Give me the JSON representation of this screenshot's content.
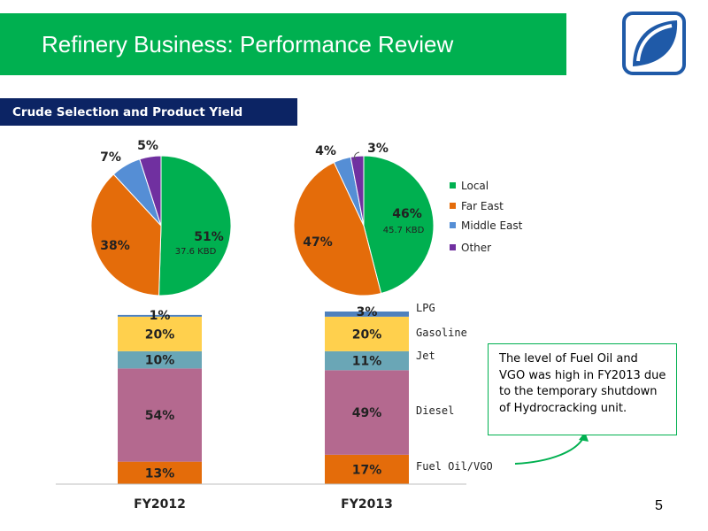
{
  "header": {
    "title": "Refinery Business: Performance Review",
    "section_label": "Crude Selection and Product Yield"
  },
  "colors": {
    "title_bar": "#00b050",
    "section_bar": "#0c2464",
    "logo": "#1f5aa8"
  },
  "callout": {
    "text": "The level of Fuel Oil and VGO was high in FY2013 due to the temporary shutdown of Hydrocracking unit."
  },
  "page_number": "5",
  "chart_data": [
    {
      "type": "pie",
      "legend": [
        {
          "label": "Local",
          "color": "#00b050"
        },
        {
          "label": "Far East",
          "color": "#e46c0a"
        },
        {
          "label": "Middle East",
          "color": "#558ed5"
        },
        {
          "label": "Other",
          "color": "#7030a0"
        }
      ],
      "legend_position": "right",
      "pies": [
        {
          "slices": [
            {
              "label": "Local",
              "value": 51,
              "value_label": "51%",
              "sub_label": "37.6 KBD",
              "color": "#00b050"
            },
            {
              "label": "Far East",
              "value": 38,
              "value_label": "38%",
              "color": "#e46c0a"
            },
            {
              "label": "Middle East",
              "value": 7,
              "value_label": "7%",
              "color": "#558ed5"
            },
            {
              "label": "Other",
              "value": 5,
              "value_label": "5%",
              "color": "#7030a0"
            }
          ]
        },
        {
          "slices": [
            {
              "label": "Local",
              "value": 46,
              "value_label": "46%",
              "sub_label": "45.7 KBD",
              "color": "#00b050"
            },
            {
              "label": "Far East",
              "value": 47,
              "value_label": "47%",
              "color": "#e46c0a"
            },
            {
              "label": "Middle East",
              "value": 4,
              "value_label": "4%",
              "color": "#558ed5"
            },
            {
              "label": "Other",
              "value": 3,
              "value_label": "3%",
              "color": "#7030a0"
            }
          ]
        }
      ]
    },
    {
      "type": "bar",
      "stacked": true,
      "categories": [
        "FY2012",
        "FY2013"
      ],
      "series": [
        {
          "name": "Fuel Oil/VGO",
          "values": [
            13,
            17
          ],
          "labels": [
            "13%",
            "17%"
          ],
          "color": "#e46c0a"
        },
        {
          "name": "Diesel",
          "values": [
            54,
            49
          ],
          "labels": [
            "54%",
            "49%"
          ],
          "color": "#b4698f"
        },
        {
          "name": "Jet",
          "values": [
            10,
            11
          ],
          "labels": [
            "10%",
            "11%"
          ],
          "color": "#6aa6b6"
        },
        {
          "name": "Gasoline",
          "values": [
            20,
            20
          ],
          "labels": [
            "20%",
            "20%"
          ],
          "color": "#ffd04d"
        },
        {
          "name": "LPG",
          "values": [
            1,
            3
          ],
          "labels": [
            "1%",
            "3%"
          ],
          "color": "#4f81bd"
        }
      ],
      "ylim": [
        0,
        100
      ],
      "grid": false
    }
  ]
}
